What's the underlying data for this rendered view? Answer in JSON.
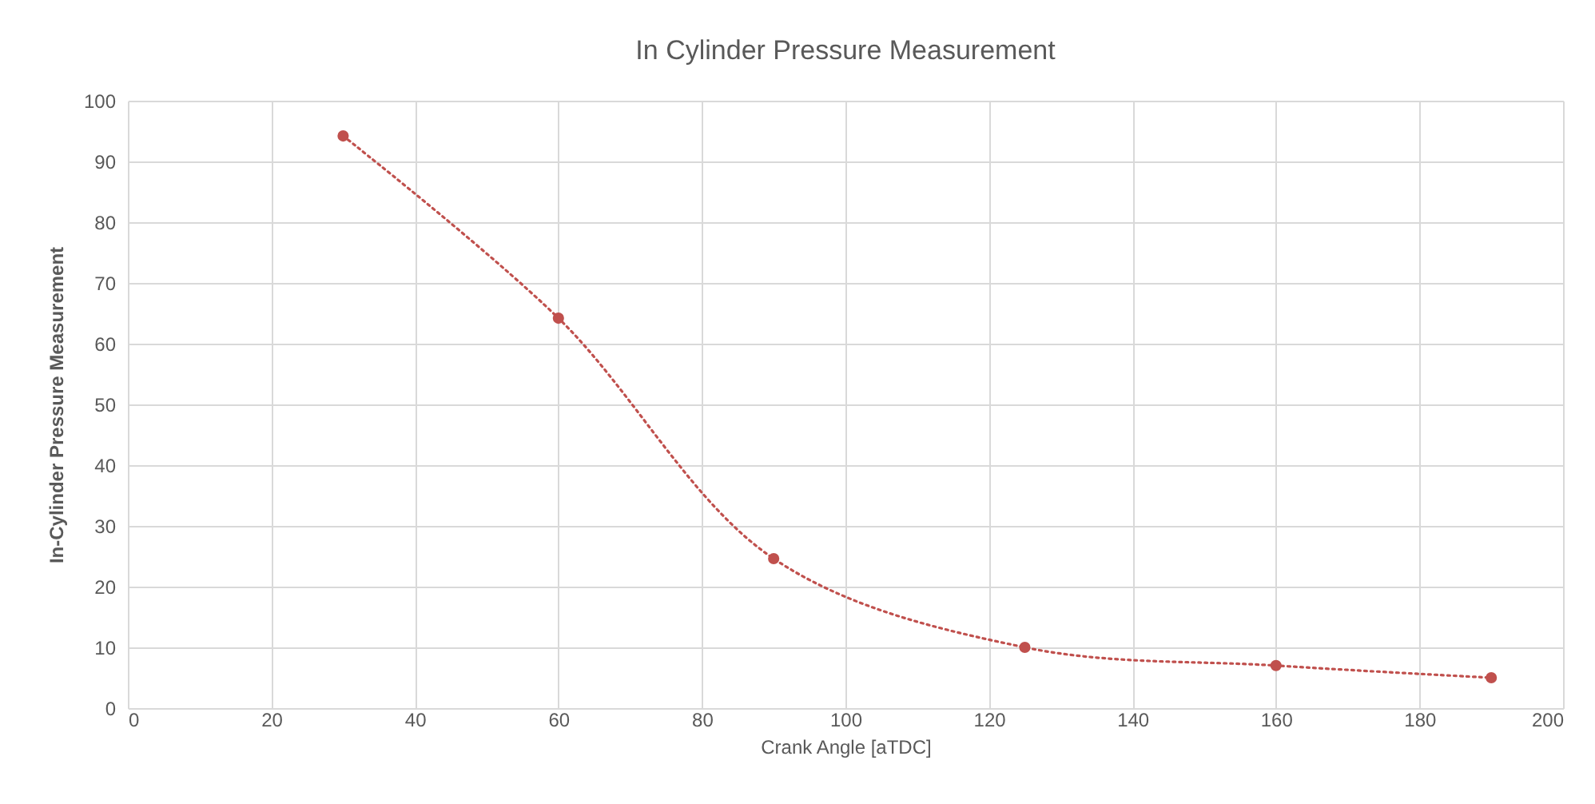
{
  "chart_data": {
    "type": "line",
    "title": "In Cylinder Pressure Measurement",
    "xlabel": "Crank Angle [aTDC]",
    "ylabel": "In-Cylinder Pressure Measurement",
    "x": [
      30,
      60,
      90,
      125,
      160,
      190
    ],
    "series": [
      {
        "color": "#c0504d",
        "values": [
          94.2,
          64.2,
          24.6,
          10,
          7,
          5
        ]
      }
    ],
    "xlim": [
      0,
      200
    ],
    "xticks": [
      0,
      20,
      40,
      60,
      80,
      100,
      120,
      140,
      160,
      180,
      200
    ],
    "ylim": [
      0,
      100
    ],
    "yticks": [
      0,
      10,
      20,
      30,
      40,
      50,
      60,
      70,
      80,
      90,
      100
    ],
    "grid": true,
    "marker": "circle",
    "line_style": "dotted"
  }
}
